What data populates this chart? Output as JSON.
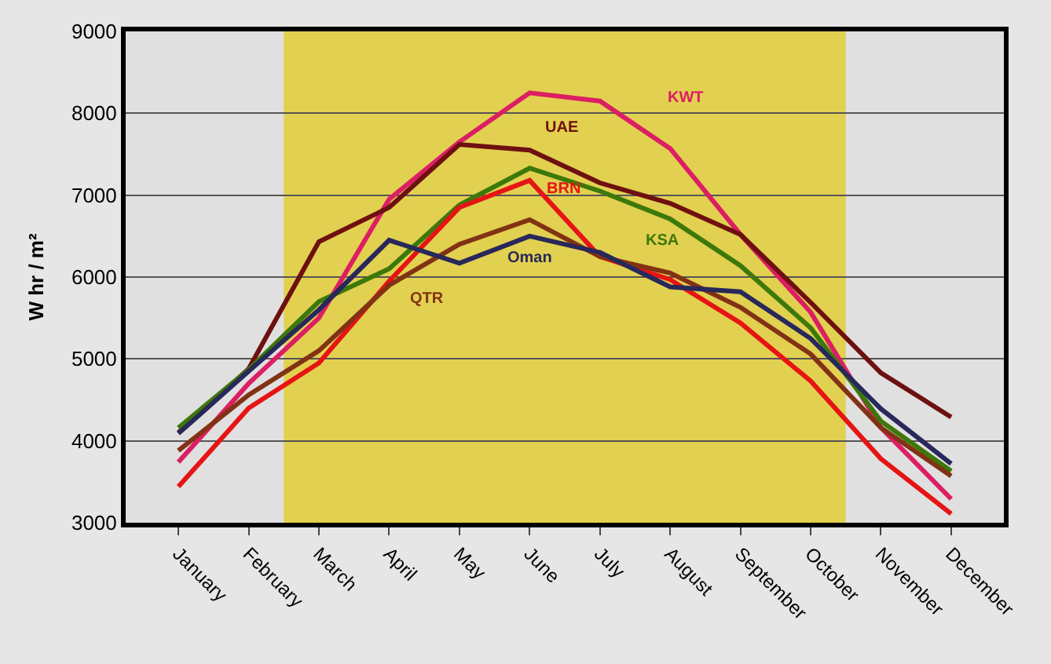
{
  "chart_data": {
    "type": "line",
    "ylabel": "W hr / m²",
    "categories": [
      "January",
      "February",
      "March",
      "April",
      "May",
      "June",
      "July",
      "August",
      "September",
      "October",
      "November",
      "December"
    ],
    "series": [
      {
        "name": "KWT",
        "color": "#dc1e64",
        "values": [
          3740,
          4700,
          5500,
          6950,
          7650,
          8250,
          8150,
          7570,
          6520,
          5570,
          4160,
          3290
        ]
      },
      {
        "name": "UAE",
        "color": "#6e1010",
        "values": [
          4100,
          4880,
          6430,
          6850,
          7620,
          7550,
          7150,
          6900,
          6520,
          5690,
          4830,
          4290
        ]
      },
      {
        "name": "KSA",
        "color": "#3c780a",
        "values": [
          4160,
          4870,
          5700,
          6100,
          6880,
          7330,
          7050,
          6710,
          6140,
          5380,
          4240,
          3630
        ]
      },
      {
        "name": "BRN",
        "color": "#e61414",
        "values": [
          3440,
          4400,
          4950,
          5950,
          6850,
          7180,
          6250,
          5970,
          5440,
          4730,
          3780,
          3110
        ]
      },
      {
        "name": "QTR",
        "color": "#823214",
        "values": [
          3880,
          4560,
          5100,
          5900,
          6400,
          6700,
          6250,
          6050,
          5630,
          5060,
          4160,
          3570
        ]
      },
      {
        "name": "Oman",
        "color": "#28285a",
        "values": [
          4090,
          4850,
          5600,
          6450,
          6170,
          6500,
          6300,
          5880,
          5820,
          5250,
          4390,
          3720
        ]
      }
    ],
    "ylim": [
      3000,
      9000
    ],
    "yticks": [
      3000,
      4000,
      5000,
      6000,
      7000,
      8000,
      9000
    ],
    "grid": "y",
    "legend": false,
    "marker": "none",
    "line_style": "solid",
    "bands": [
      {
        "axis": "x",
        "from": "March",
        "to": "October",
        "color": "#e2d050"
      }
    ]
  }
}
